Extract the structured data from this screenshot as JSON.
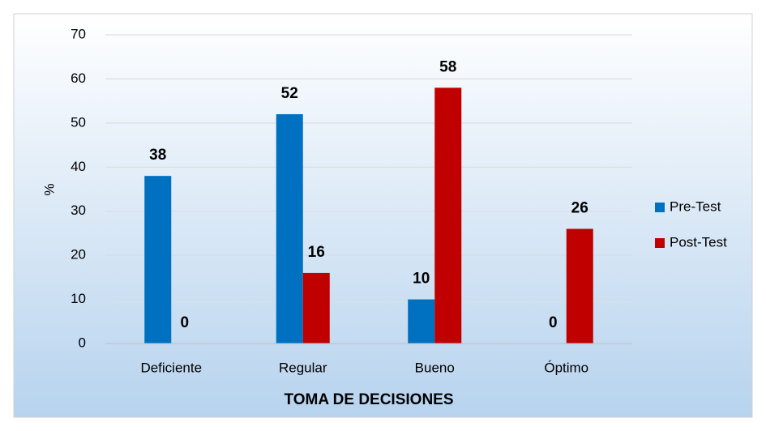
{
  "chart_data": {
    "type": "bar",
    "x_label": "TOMA DE DECISIONES",
    "y_label": "%",
    "categories": [
      "Deficiente",
      "Regular",
      "Bueno",
      "Óptimo"
    ],
    "series": [
      {
        "name": "Pre-Test",
        "color": "#0070c0",
        "values": [
          38,
          52,
          10,
          0
        ]
      },
      {
        "name": "Post-Test",
        "color": "#c00000",
        "values": [
          0,
          16,
          58,
          26
        ]
      }
    ],
    "ylim": [
      0,
      70
    ],
    "yticks": [
      0,
      10,
      20,
      30,
      40,
      50,
      60,
      70
    ],
    "grid": true,
    "legend": "right"
  }
}
